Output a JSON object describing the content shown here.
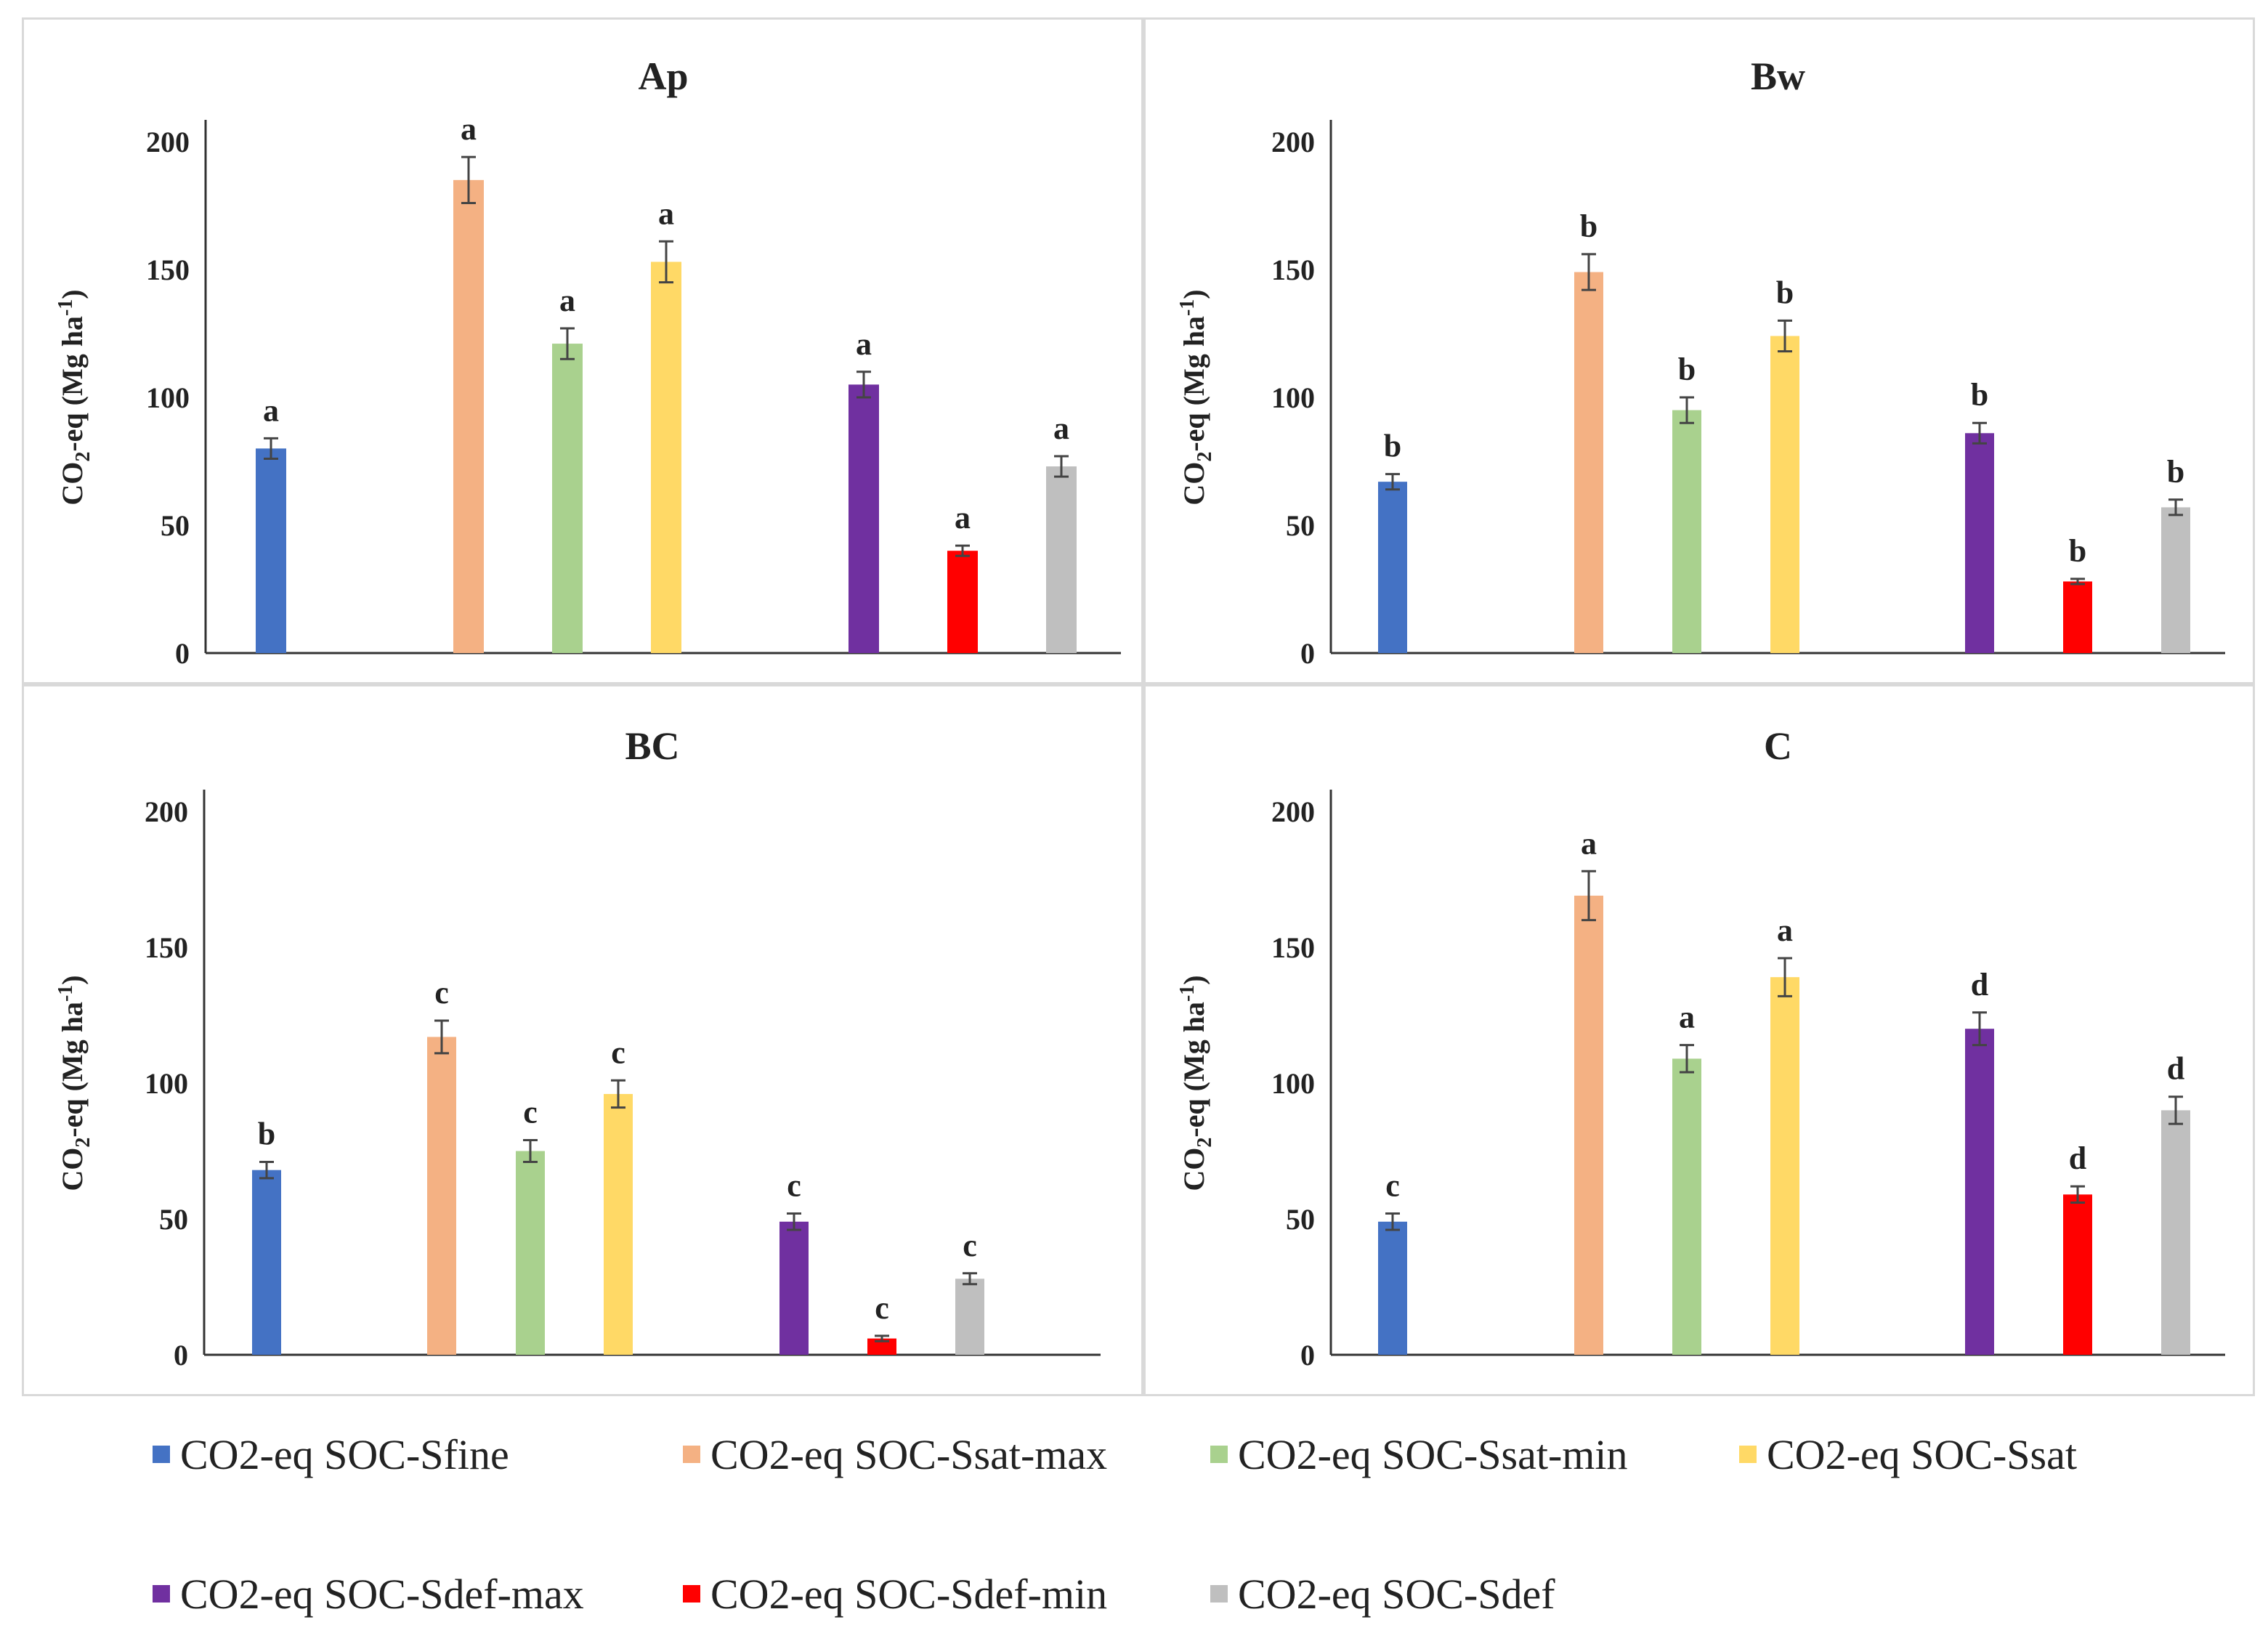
{
  "chart_data": [
    {
      "type": "bar",
      "title": "Ap",
      "ylabel": "CO2-eq (Mg ha-1)",
      "ylim": [
        0,
        200
      ],
      "yticks": [
        0,
        50,
        100,
        150,
        200
      ],
      "series": [
        {
          "name": "CO2-eq SOC-Sfine",
          "value": 80,
          "error": 4,
          "letter": "a"
        },
        {
          "name": "CO2-eq SOC-Ssat-max",
          "value": 185,
          "error": 9,
          "letter": "a"
        },
        {
          "name": "CO2-eq SOC-Ssat-min",
          "value": 121,
          "error": 6,
          "letter": "a"
        },
        {
          "name": "CO2-eq SOC-Ssat",
          "value": 153,
          "error": 8,
          "letter": "a"
        },
        {
          "name": "CO2-eq SOC-Sdef-max",
          "value": 105,
          "error": 5,
          "letter": "a"
        },
        {
          "name": "CO2-eq SOC-Sdef-min",
          "value": 40,
          "error": 2,
          "letter": "a"
        },
        {
          "name": "CO2-eq SOC-Sdef",
          "value": 73,
          "error": 4,
          "letter": "a"
        }
      ]
    },
    {
      "type": "bar",
      "title": "Bw",
      "ylabel": "CO2-eq (Mg ha-1)",
      "ylim": [
        0,
        200
      ],
      "yticks": [
        0,
        50,
        100,
        150,
        200
      ],
      "series": [
        {
          "name": "CO2-eq SOC-Sfine",
          "value": 67,
          "error": 3,
          "letter": "b"
        },
        {
          "name": "CO2-eq SOC-Ssat-max",
          "value": 149,
          "error": 7,
          "letter": "b"
        },
        {
          "name": "CO2-eq SOC-Ssat-min",
          "value": 95,
          "error": 5,
          "letter": "b"
        },
        {
          "name": "CO2-eq SOC-Ssat",
          "value": 124,
          "error": 6,
          "letter": "b"
        },
        {
          "name": "CO2-eq SOC-Sdef-max",
          "value": 86,
          "error": 4,
          "letter": "b"
        },
        {
          "name": "CO2-eq SOC-Sdef-min",
          "value": 28,
          "error": 1,
          "letter": "b"
        },
        {
          "name": "CO2-eq SOC-Sdef",
          "value": 57,
          "error": 3,
          "letter": "b"
        }
      ]
    },
    {
      "type": "bar",
      "title": "BC",
      "ylabel": "CO2-eq (Mg ha-1)",
      "ylim": [
        0,
        200
      ],
      "yticks": [
        0,
        50,
        100,
        150,
        200
      ],
      "series": [
        {
          "name": "CO2-eq SOC-Sfine",
          "value": 68,
          "error": 3,
          "letter": "b"
        },
        {
          "name": "CO2-eq SOC-Ssat-max",
          "value": 117,
          "error": 6,
          "letter": "c"
        },
        {
          "name": "CO2-eq SOC-Ssat-min",
          "value": 75,
          "error": 4,
          "letter": "c"
        },
        {
          "name": "CO2-eq SOC-Ssat",
          "value": 96,
          "error": 5,
          "letter": "c"
        },
        {
          "name": "CO2-eq SOC-Sdef-max",
          "value": 49,
          "error": 3,
          "letter": "c"
        },
        {
          "name": "CO2-eq SOC-Sdef-min",
          "value": 6,
          "error": 1,
          "letter": "c"
        },
        {
          "name": "CO2-eq SOC-Sdef",
          "value": 28,
          "error": 2,
          "letter": "c"
        }
      ]
    },
    {
      "type": "bar",
      "title": "C",
      "ylabel": "CO2-eq (Mg ha-1)",
      "ylim": [
        0,
        200
      ],
      "yticks": [
        0,
        50,
        100,
        150,
        200
      ],
      "series": [
        {
          "name": "CO2-eq SOC-Sfine",
          "value": 49,
          "error": 3,
          "letter": "c"
        },
        {
          "name": "CO2-eq SOC-Ssat-max",
          "value": 169,
          "error": 9,
          "letter": "a"
        },
        {
          "name": "CO2-eq SOC-Ssat-min",
          "value": 109,
          "error": 5,
          "letter": "a"
        },
        {
          "name": "CO2-eq SOC-Ssat",
          "value": 139,
          "error": 7,
          "letter": "a"
        },
        {
          "name": "CO2-eq SOC-Sdef-max",
          "value": 120,
          "error": 6,
          "letter": "d"
        },
        {
          "name": "CO2-eq SOC-Sdef-min",
          "value": 59,
          "error": 3,
          "letter": "d"
        },
        {
          "name": "CO2-eq SOC-Sdef",
          "value": 90,
          "error": 5,
          "letter": "d"
        }
      ]
    }
  ],
  "legend": [
    {
      "label": "CO2-eq SOC-Sfine",
      "color": "#4472c4"
    },
    {
      "label": "CO2-eq SOC-Ssat-max",
      "color": "#f4b183"
    },
    {
      "label": "CO2-eq SOC-Ssat-min",
      "color": "#a9d18e"
    },
    {
      "label": "CO2-eq SOC-Ssat",
      "color": "#ffd966"
    },
    {
      "label": "CO2-eq SOC-Sdef-max",
      "color": "#7030a0"
    },
    {
      "label": "CO2-eq SOC-Sdef-min",
      "color": "#ff0000"
    },
    {
      "label": "CO2-eq SOC-Sdef",
      "color": "#bfbfbf"
    }
  ]
}
